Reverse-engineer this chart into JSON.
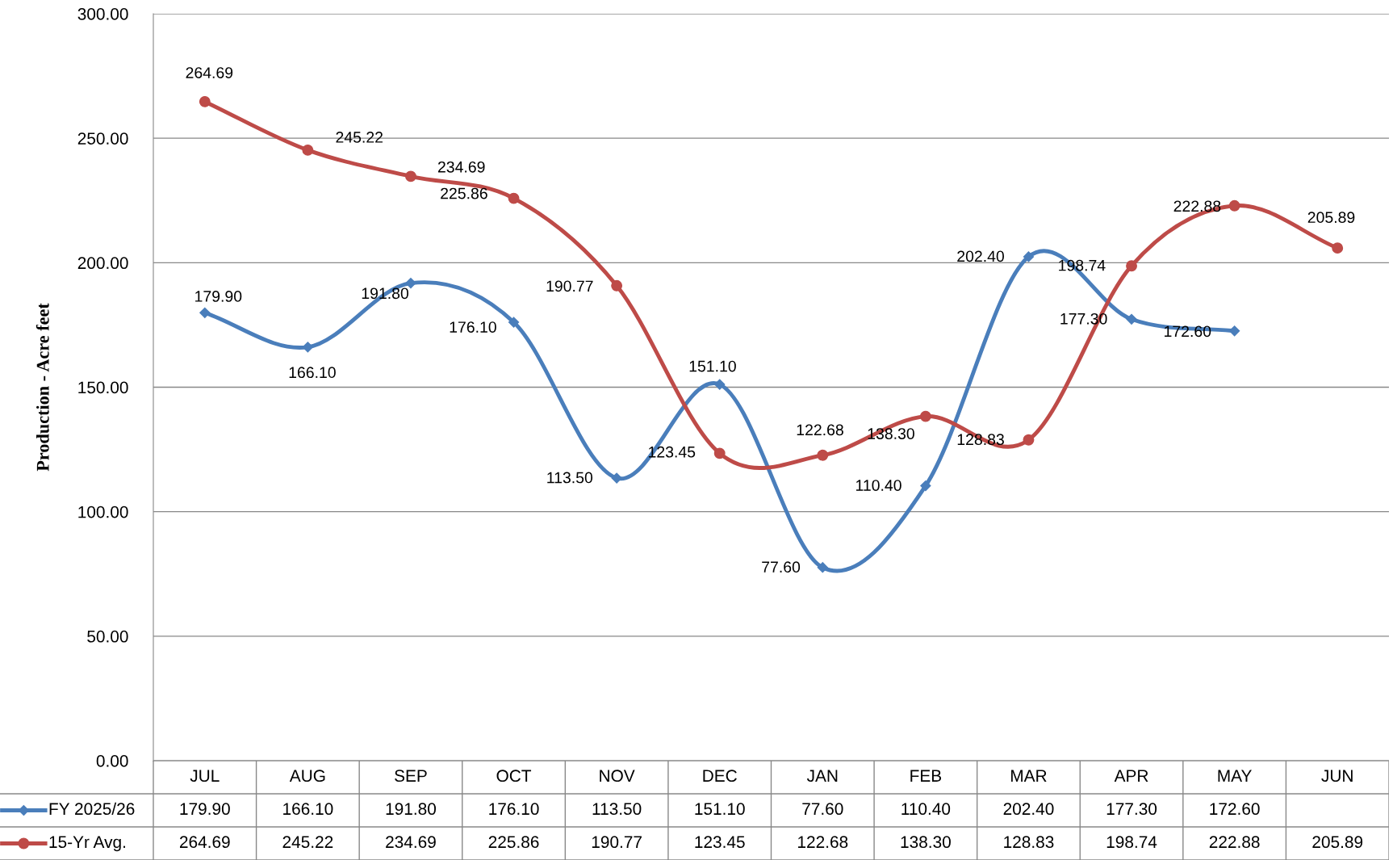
{
  "chart_data": {
    "type": "line",
    "ylabel": "Production - Acre feet",
    "categories": [
      "JUL",
      "AUG",
      "SEP",
      "OCT",
      "NOV",
      "DEC",
      "JAN",
      "FEB",
      "MAR",
      "APR",
      "MAY",
      "JUN"
    ],
    "series": [
      {
        "name": "FY 2025/26",
        "color": "#4a7ebb",
        "marker": "diamond",
        "values": [
          179.9,
          166.1,
          191.8,
          176.1,
          113.5,
          151.1,
          77.6,
          110.4,
          202.4,
          177.3,
          172.6,
          null
        ],
        "value_labels": [
          "179.90",
          "166.10",
          "191.80",
          "176.10",
          "113.50",
          "151.10",
          "77.60",
          "110.40",
          "202.40",
          "177.30",
          "172.60",
          null
        ]
      },
      {
        "name": "15-Yr Avg.",
        "color": "#be4b48",
        "marker": "circle",
        "values": [
          264.69,
          245.22,
          234.69,
          225.86,
          190.77,
          123.45,
          122.68,
          138.3,
          128.83,
          198.74,
          222.88,
          205.89
        ],
        "value_labels": [
          "264.69",
          "245.22",
          "234.69",
          "225.86",
          "190.77",
          "123.45",
          "122.68",
          "138.30",
          "128.83",
          "198.74",
          "222.88",
          "205.89"
        ]
      }
    ],
    "ylim": [
      0,
      300
    ],
    "yticks": [
      {
        "value": 0,
        "label": "0.00"
      },
      {
        "value": 50,
        "label": "50.00"
      },
      {
        "value": 100,
        "label": "100.00"
      },
      {
        "value": 150,
        "label": "150.00"
      },
      {
        "value": 200,
        "label": "200.00"
      },
      {
        "value": 250,
        "label": "250.00"
      },
      {
        "value": 300,
        "label": "300.00"
      }
    ],
    "grid": "y",
    "legend": "bottom",
    "tick_labels": "y",
    "line_style": "solid"
  }
}
